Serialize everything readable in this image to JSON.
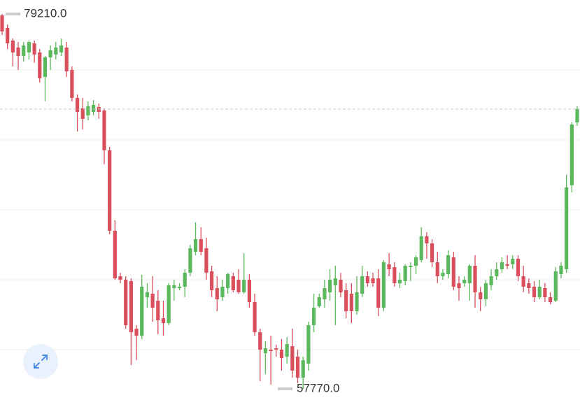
{
  "chart_data": {
    "type": "candlestick",
    "up_color": "#5cb85c",
    "down_color": "#d9505c",
    "ylim": [
      57130,
      80010
    ],
    "gridlines": [
      76010,
      72010,
      68010,
      64010,
      60010
    ],
    "max_label": {
      "value": 79210,
      "label": "79210.0"
    },
    "min_label": {
      "value": 57770,
      "label": "57770.0"
    },
    "open": [
      79130,
      78410,
      77690,
      77290,
      76810,
      77010,
      77530,
      77010,
      75610,
      76730,
      76890,
      77010,
      77290,
      76010,
      74410,
      73810,
      73410,
      73610,
      73890,
      73690,
      71410,
      66810,
      64210,
      64010,
      63930,
      61210,
      60810,
      63010,
      63210,
      62810,
      61810,
      61530,
      63530,
      63530,
      63610,
      64410,
      65610,
      66330,
      65810,
      64490,
      63530,
      63010,
      63530,
      64210,
      64010,
      63290,
      64010,
      62730,
      61010,
      59810,
      60010,
      60090,
      60010,
      59610,
      60210,
      59610,
      58410,
      59210,
      61410,
      62490,
      62890,
      63290,
      63690,
      64010,
      63410,
      63210,
      62210,
      63210,
      64210,
      64090,
      64090,
      62410,
      64890,
      64730,
      63810,
      63930,
      64730,
      64810,
      65130,
      66490,
      66090,
      65010,
      64210,
      64330,
      65290,
      63810,
      63810,
      63810,
      64810,
      63290,
      62890,
      63690,
      64210,
      64610,
      64890,
      64890,
      65210,
      64210,
      63810,
      63610,
      63010,
      63530,
      63010,
      62810,
      64330,
      64610,
      69410,
      73010
    ],
    "high": [
      79210,
      78610,
      77810,
      77610,
      77610,
      77690,
      77690,
      77210,
      76810,
      77410,
      77610,
      77810,
      77610,
      76210,
      74610,
      74410,
      74210,
      74290,
      74090,
      73810,
      71610,
      67410,
      64410,
      64210,
      64090,
      61410,
      64290,
      63810,
      64210,
      63410,
      62810,
      63810,
      64010,
      63810,
      64610,
      66010,
      67290,
      67010,
      66410,
      64810,
      64210,
      64010,
      64410,
      64410,
      64610,
      65530,
      64330,
      63210,
      61210,
      60490,
      60810,
      60290,
      60610,
      60730,
      61210,
      60010,
      59610,
      61610,
      63210,
      63210,
      64010,
      64610,
      64810,
      64410,
      63810,
      63810,
      64210,
      64810,
      64490,
      64410,
      64610,
      65130,
      65530,
      65010,
      64410,
      64890,
      65010,
      65410,
      67010,
      66730,
      66330,
      65610,
      64610,
      65690,
      65610,
      64210,
      64210,
      64890,
      65410,
      63610,
      64010,
      64610,
      65010,
      65290,
      65410,
      65410,
      65410,
      64810,
      64090,
      63930,
      64010,
      63810,
      63290,
      64730,
      65010,
      70010,
      73010,
      73930
    ],
    "low": [
      78010,
      77210,
      76210,
      76010,
      76490,
      76610,
      76410,
      75290,
      74210,
      76010,
      76610,
      76810,
      75610,
      74210,
      72490,
      72610,
      73130,
      73410,
      73210,
      70610,
      66610,
      64010,
      63810,
      61210,
      59130,
      59410,
      60610,
      62410,
      61610,
      60890,
      60810,
      61410,
      62810,
      63410,
      63010,
      64210,
      65410,
      65410,
      64010,
      63010,
      62210,
      62810,
      63210,
      63290,
      63210,
      63210,
      62410,
      60810,
      58210,
      58610,
      58010,
      59610,
      58810,
      59210,
      58410,
      58090,
      57770,
      58810,
      61010,
      62410,
      62410,
      62810,
      61410,
      63010,
      61810,
      61530,
      62010,
      63010,
      63610,
      63610,
      61930,
      62210,
      64210,
      63610,
      63530,
      63690,
      63930,
      64330,
      65010,
      65210,
      64730,
      63810,
      64010,
      64090,
      63410,
      62810,
      63610,
      62810,
      62410,
      62210,
      62490,
      63410,
      64010,
      64410,
      64610,
      64610,
      63930,
      63290,
      63210,
      62730,
      62890,
      62730,
      62610,
      62730,
      64090,
      64410,
      69010,
      72810
    ],
    "close": [
      78210,
      77530,
      77010,
      76810,
      77410,
      77610,
      76890,
      75530,
      76730,
      77130,
      77290,
      77410,
      75930,
      74410,
      73610,
      73210,
      73930,
      74010,
      73610,
      71410,
      66810,
      64090,
      64010,
      61410,
      61010,
      60810,
      63610,
      63290,
      62410,
      61690,
      61530,
      63690,
      63690,
      63610,
      64410,
      65810,
      66330,
      65610,
      64410,
      63410,
      62890,
      63610,
      64330,
      63410,
      63290,
      64010,
      62730,
      61010,
      60010,
      60090,
      59930,
      60010,
      59530,
      60330,
      58810,
      58410,
      59410,
      61410,
      62410,
      63010,
      63530,
      64010,
      64090,
      63290,
      62210,
      62210,
      63290,
      64210,
      63810,
      63810,
      62410,
      65010,
      64610,
      63810,
      64010,
      64810,
      64810,
      65290,
      66490,
      66090,
      65010,
      64210,
      64410,
      65410,
      63610,
      63530,
      64010,
      64810,
      63290,
      62890,
      63810,
      64210,
      64610,
      65010,
      64810,
      65210,
      64210,
      63610,
      63530,
      63010,
      63610,
      63010,
      62730,
      64490,
      64810,
      69290,
      72890,
      73770
    ]
  }
}
